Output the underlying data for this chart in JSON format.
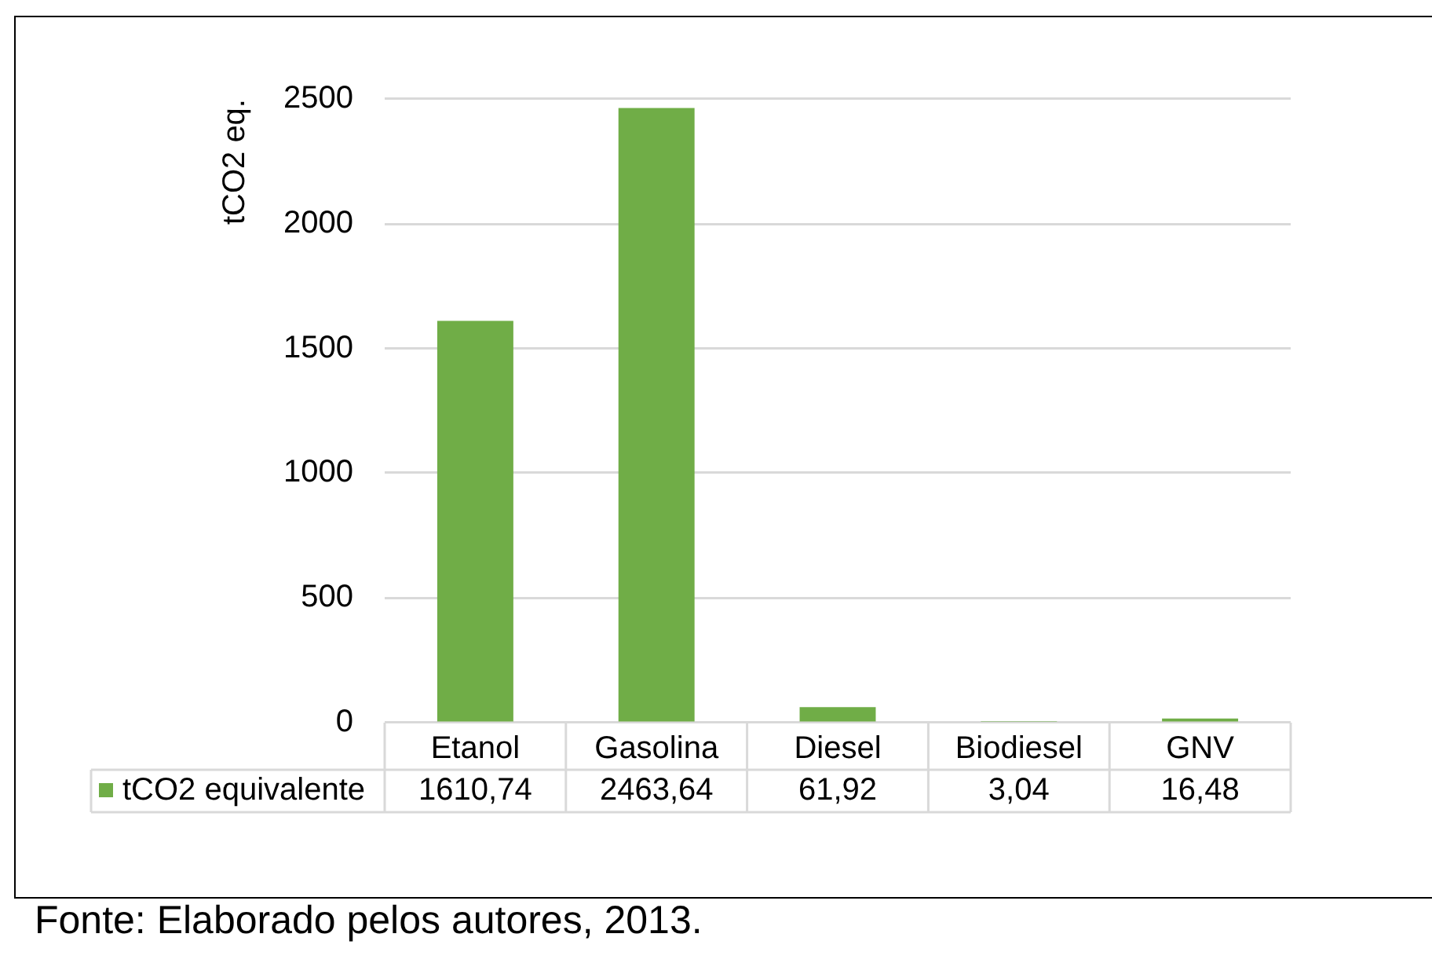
{
  "chart_data": {
    "type": "bar",
    "ylabel": "tCO2 eq.",
    "categories": [
      "Etanol",
      "Gasolina",
      "Diesel",
      "Biodiesel",
      "GNV"
    ],
    "series": [
      {
        "name": "tCO2 equivalente",
        "color": "#70ad47",
        "values": [
          1610.74,
          2463.64,
          61.92,
          3.04,
          16.48
        ],
        "value_labels": [
          "1610,74",
          "2463,64",
          "61,92",
          "3,04",
          "16,48"
        ]
      }
    ],
    "ylim": [
      0,
      2500
    ],
    "yticks": [
      0,
      500,
      1000,
      1500,
      2000,
      2500
    ],
    "grid": "y",
    "legend": "bottom left",
    "annotations": [
      "Fonte: Elaborado pelos autores, 2013."
    ]
  }
}
